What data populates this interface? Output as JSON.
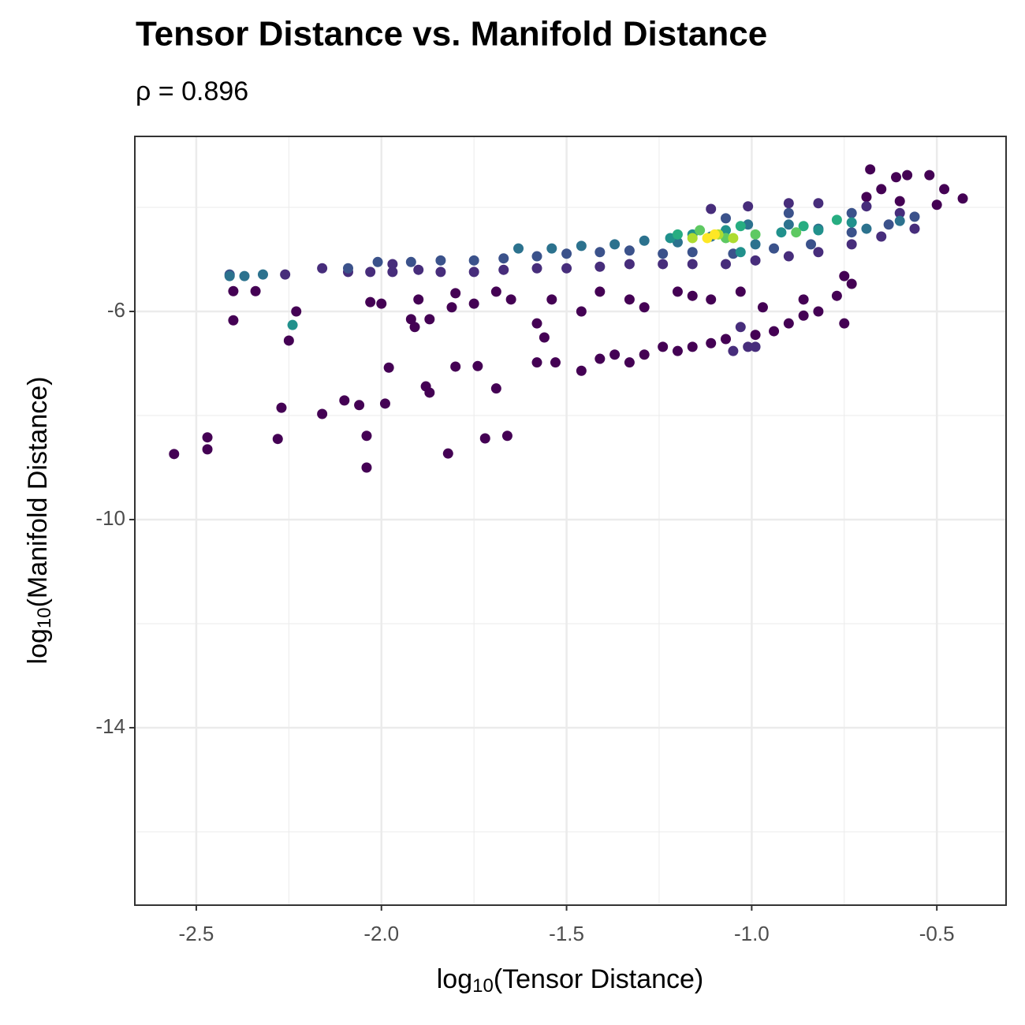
{
  "chart_data": {
    "type": "scatter",
    "title": "Tensor Distance vs. Manifold Distance",
    "subtitle": "ρ = 0.896",
    "xlabel": [
      "log",
      "10",
      "(Tensor Distance)"
    ],
    "ylabel": [
      "log",
      "10",
      "(Manifold Distance)"
    ],
    "xlim": [
      -2.666,
      -0.313
    ],
    "ylim": [
      -17.41,
      -2.636
    ],
    "xticks": [
      -2.5,
      {
        "value": -2,
        "label": "-2.0"
      },
      -1.5,
      {
        "value": -1,
        "label": "-1.0"
      },
      -0.5
    ],
    "yticks": [
      -6,
      -10,
      -14
    ],
    "xminor": [
      -2.25,
      -1.75,
      -1.25,
      -0.75
    ],
    "yminor": [
      -4,
      -8,
      -12,
      -16
    ],
    "grid": true,
    "series": [
      {
        "color": "#440154",
        "x": [
          -2.56,
          -2.47,
          -2.47,
          -2.28,
          -2.27,
          -2.16,
          -2.1,
          -2.06,
          -2.04,
          -2.04,
          -1.99,
          -1.98,
          -1.88,
          -1.87,
          -1.82,
          -1.8,
          -1.74,
          -1.72,
          -1.66,
          -1.69,
          -2.4,
          -2.25,
          -2.23,
          -2.4,
          -2.34,
          -2.03,
          -2.0,
          -1.92,
          -1.91,
          -1.87,
          -1.9,
          -1.81,
          -1.75,
          -1.69,
          -1.58,
          -1.56,
          -1.46,
          -1.58,
          -1.53,
          -1.46,
          -1.41,
          -1.37,
          -1.33,
          -1.29,
          -1.24,
          -1.2,
          -1.16,
          -1.11,
          -1.07,
          -0.99,
          -0.94,
          -0.9,
          -0.86,
          -0.82,
          -0.75,
          -0.86,
          -0.97,
          -1.03,
          -1.11,
          -1.2,
          -1.29,
          -1.33,
          -1.41,
          -1.54,
          -1.65,
          -0.73,
          -0.77,
          -0.75,
          -0.68,
          -0.61,
          -0.58,
          -0.52,
          -0.48,
          -0.43,
          -0.5,
          -0.65,
          -0.6,
          -0.69,
          -1.16,
          -1.8
        ],
        "y": [
          -8.74,
          -8.42,
          -8.65,
          -8.45,
          -7.85,
          -7.97,
          -7.71,
          -7.8,
          -8.39,
          -9.0,
          -7.77,
          -7.08,
          -7.44,
          -7.56,
          -8.73,
          -7.06,
          -7.05,
          -8.44,
          -8.39,
          -7.48,
          -6.17,
          -6.56,
          -6.0,
          -5.61,
          -5.61,
          -5.82,
          -5.85,
          -6.15,
          -6.3,
          -6.15,
          -5.77,
          -5.92,
          -5.85,
          -5.62,
          -6.23,
          -6.5,
          -6.0,
          -6.98,
          -6.98,
          -7.14,
          -6.91,
          -6.83,
          -6.98,
          -6.83,
          -6.68,
          -6.76,
          -6.68,
          -6.61,
          -6.53,
          -6.45,
          -6.38,
          -6.23,
          -6.08,
          -6.0,
          -6.23,
          -5.77,
          -5.92,
          -5.62,
          -5.77,
          -5.62,
          -5.92,
          -5.77,
          -5.62,
          -5.77,
          -5.77,
          -5.47,
          -5.7,
          -5.32,
          -3.27,
          -3.42,
          -3.38,
          -3.38,
          -3.65,
          -3.83,
          -3.95,
          -3.65,
          -3.88,
          -3.8,
          -5.7,
          -5.65
        ]
      },
      {
        "color": "#472d7b",
        "x": [
          -2.16,
          -2.09,
          -2.03,
          -1.97,
          -1.9,
          -1.84,
          -1.75,
          -1.67,
          -1.58,
          -1.5,
          -1.41,
          -1.33,
          -1.24,
          -1.16,
          -1.07,
          -0.99,
          -0.9,
          -0.82,
          -0.73,
          -0.65,
          -0.56,
          -1.03,
          -1.01,
          -1.05,
          -0.99,
          -1.11,
          -1.01,
          -0.9,
          -0.82,
          -0.69,
          -0.6,
          -2.26,
          -1.97
        ],
        "y": [
          -5.17,
          -5.24,
          -5.24,
          -5.24,
          -5.2,
          -5.24,
          -5.24,
          -5.2,
          -5.17,
          -5.17,
          -5.14,
          -5.09,
          -5.09,
          -5.09,
          -5.09,
          -5.02,
          -4.94,
          -4.86,
          -4.71,
          -4.56,
          -4.41,
          -6.3,
          -6.68,
          -6.76,
          -6.68,
          -4.03,
          -3.98,
          -3.92,
          -3.92,
          -3.98,
          -4.11,
          -5.29,
          -5.09
        ]
      },
      {
        "color": "#3b528b",
        "x": [
          -2.01,
          -1.92,
          -1.84,
          -1.75,
          -1.67,
          -1.58,
          -1.5,
          -1.41,
          -1.33,
          -1.24,
          -1.16,
          -1.05,
          -0.94,
          -0.84,
          -0.73,
          -0.63,
          -0.56,
          -1.07,
          -0.9,
          -0.73,
          -2.09,
          -2.41
        ],
        "y": [
          -5.05,
          -5.05,
          -5.02,
          -5.02,
          -4.98,
          -4.94,
          -4.89,
          -4.86,
          -4.83,
          -4.89,
          -4.86,
          -4.89,
          -4.79,
          -4.71,
          -4.48,
          -4.33,
          -4.18,
          -4.21,
          -4.11,
          -4.11,
          -5.17,
          -5.29
        ]
      },
      {
        "color": "#2c728e",
        "x": [
          -2.41,
          -2.37,
          -2.32,
          -1.63,
          -1.54,
          -1.46,
          -1.37,
          -1.29,
          -1.2,
          -1.11,
          -1.01,
          -0.9,
          -0.82,
          -0.69,
          -0.6,
          -0.99
        ],
        "y": [
          -5.32,
          -5.32,
          -5.29,
          -4.79,
          -4.79,
          -4.74,
          -4.71,
          -4.64,
          -4.67,
          -4.56,
          -4.33,
          -4.33,
          -4.41,
          -4.41,
          -4.26,
          -4.71
        ]
      },
      {
        "color": "#21918c",
        "x": [
          -2.24,
          -1.22,
          -1.16,
          -1.07,
          -0.92,
          -0.82,
          -0.73,
          -1.03
        ],
        "y": [
          -6.26,
          -4.59,
          -4.52,
          -4.44,
          -4.48,
          -4.44,
          -4.29,
          -4.86
        ]
      },
      {
        "color": "#27ad81",
        "x": [
          -1.2,
          -1.03,
          -0.86,
          -0.77
        ],
        "y": [
          -4.52,
          -4.36,
          -4.36,
          -4.24
        ]
      },
      {
        "color": "#5ec962",
        "x": [
          -1.14,
          -0.99,
          -0.88,
          -1.07
        ],
        "y": [
          -4.44,
          -4.52,
          -4.48,
          -4.59
        ]
      },
      {
        "color": "#addc30",
        "x": [
          -1.16,
          -1.09,
          -1.05
        ],
        "y": [
          -4.59,
          -4.52,
          -4.59
        ]
      },
      {
        "color": "#fde725",
        "x": [
          -1.12,
          -1.1
        ],
        "y": [
          -4.59,
          -4.52
        ]
      }
    ]
  }
}
